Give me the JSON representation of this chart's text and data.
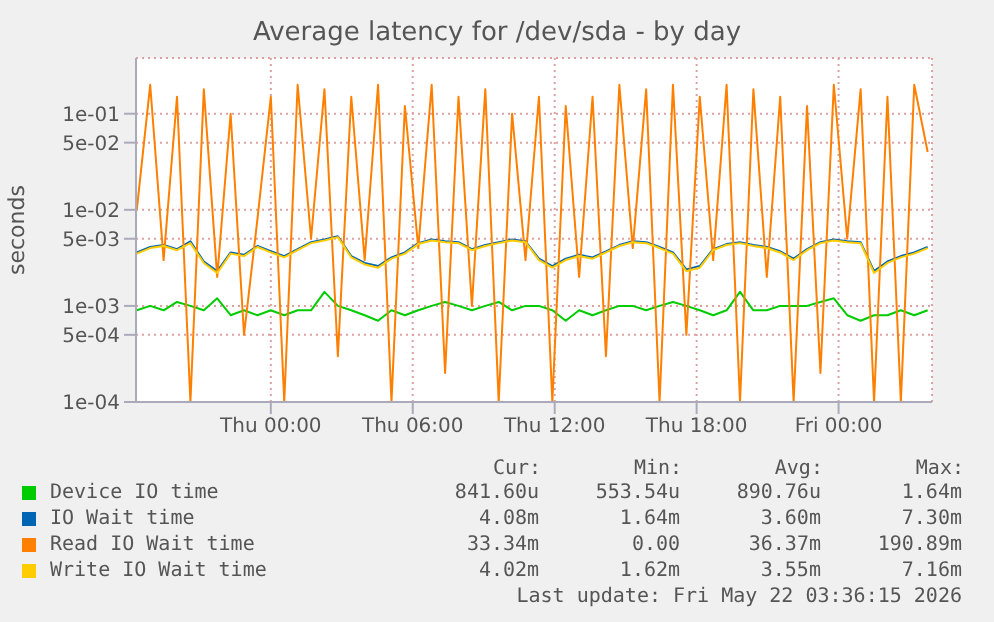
{
  "chart_data": {
    "type": "line",
    "title": "Average latency for /dev/sda - by day",
    "ylabel": "seconds",
    "log": "y",
    "grid": true,
    "legend": "bottom",
    "marker": "none",
    "line_style": "solid",
    "xlim": [
      "2026-05-20T18:18",
      "2026-05-22T03:57"
    ],
    "xticks": [
      {
        "value": "2026-05-21T00:00",
        "label": "Thu 00:00"
      },
      {
        "value": "2026-05-21T06:00",
        "label": "Thu 06:00"
      },
      {
        "value": "2026-05-21T12:00",
        "label": "Thu 12:00"
      },
      {
        "value": "2026-05-21T18:00",
        "label": "Thu 18:00"
      },
      {
        "value": "2026-05-22T00:00",
        "label": "Fri 00:00"
      }
    ],
    "ylim": [
      0.0001,
      0.38
    ],
    "yticks": [
      {
        "value": 0.0001,
        "label": "1e-04"
      },
      {
        "value": 0.0005,
        "label": "5e-04"
      },
      {
        "value": 0.001,
        "label": "1e-03"
      },
      {
        "value": 0.005,
        "label": "5e-03"
      },
      {
        "value": 0.01,
        "label": "1e-02"
      },
      {
        "value": 0.05,
        "label": "5e-02"
      },
      {
        "value": 0.1,
        "label": "1e-01"
      }
    ],
    "x": [
      "2026-05-20T18:20",
      "2026-05-20T18:54",
      "2026-05-20T19:28",
      "2026-05-20T20:02",
      "2026-05-20T20:36",
      "2026-05-20T21:10",
      "2026-05-20T21:44",
      "2026-05-20T22:18",
      "2026-05-20T22:52",
      "2026-05-20T23:26",
      "2026-05-21T00:00",
      "2026-05-21T00:34",
      "2026-05-21T01:08",
      "2026-05-21T01:42",
      "2026-05-21T02:16",
      "2026-05-21T02:50",
      "2026-05-21T03:24",
      "2026-05-21T03:58",
      "2026-05-21T04:32",
      "2026-05-21T05:06",
      "2026-05-21T05:40",
      "2026-05-21T06:14",
      "2026-05-21T06:48",
      "2026-05-21T07:22",
      "2026-05-21T07:56",
      "2026-05-21T08:30",
      "2026-05-21T09:04",
      "2026-05-21T09:38",
      "2026-05-21T10:12",
      "2026-05-21T10:46",
      "2026-05-21T11:20",
      "2026-05-21T11:54",
      "2026-05-21T12:28",
      "2026-05-21T13:02",
      "2026-05-21T13:36",
      "2026-05-21T14:10",
      "2026-05-21T14:44",
      "2026-05-21T15:18",
      "2026-05-21T15:52",
      "2026-05-21T16:26",
      "2026-05-21T17:00",
      "2026-05-21T17:34",
      "2026-05-21T18:08",
      "2026-05-21T18:42",
      "2026-05-21T19:16",
      "2026-05-21T19:50",
      "2026-05-21T20:24",
      "2026-05-21T20:58",
      "2026-05-21T21:32",
      "2026-05-21T22:06",
      "2026-05-21T22:40",
      "2026-05-21T23:14",
      "2026-05-21T23:48",
      "2026-05-22T00:22",
      "2026-05-22T00:56",
      "2026-05-22T01:30",
      "2026-05-22T02:04",
      "2026-05-22T02:38",
      "2026-05-22T03:12",
      "2026-05-22T03:46"
    ],
    "series": [
      {
        "name": "Device IO time",
        "color": "#00cc00",
        "values": [
          0.0009,
          0.001,
          0.0009,
          0.0011,
          0.001,
          0.0009,
          0.0012,
          0.0008,
          0.0009,
          0.0008,
          0.0009,
          0.0008,
          0.0009,
          0.0009,
          0.0014,
          0.001,
          0.0009,
          0.0008,
          0.0007,
          0.0009,
          0.0008,
          0.0009,
          0.001,
          0.0011,
          0.001,
          0.0009,
          0.001,
          0.0011,
          0.0009,
          0.001,
          0.001,
          0.0009,
          0.0007,
          0.0009,
          0.0008,
          0.0009,
          0.001,
          0.001,
          0.0009,
          0.001,
          0.0011,
          0.001,
          0.0009,
          0.0008,
          0.0009,
          0.0014,
          0.0009,
          0.0009,
          0.001,
          0.001,
          0.001,
          0.0011,
          0.0012,
          0.0008,
          0.0007,
          0.0008,
          0.0008,
          0.0009,
          0.0008,
          0.0009
        ]
      },
      {
        "name": "IO Wait time",
        "color": "#0066b3",
        "values": [
          0.0036,
          0.0041,
          0.0043,
          0.0039,
          0.0047,
          0.0029,
          0.0023,
          0.0036,
          0.0034,
          0.0042,
          0.0037,
          0.0033,
          0.0039,
          0.0046,
          0.0049,
          0.0053,
          0.0033,
          0.0028,
          0.0026,
          0.0032,
          0.0036,
          0.0045,
          0.0049,
          0.0047,
          0.0046,
          0.0039,
          0.0043,
          0.0046,
          0.0049,
          0.0047,
          0.0031,
          0.0026,
          0.0031,
          0.0034,
          0.0032,
          0.0037,
          0.0043,
          0.0047,
          0.0046,
          0.0041,
          0.0036,
          0.0024,
          0.0026,
          0.0039,
          0.0044,
          0.0046,
          0.0043,
          0.0041,
          0.0037,
          0.0031,
          0.0039,
          0.0046,
          0.0049,
          0.0047,
          0.0046,
          0.0023,
          0.0029,
          0.0033,
          0.0036,
          0.0041
        ]
      },
      {
        "name": "Read IO Wait time",
        "color": "#ff8000",
        "values": [
          0.01,
          0.2,
          0.003,
          0.15,
          0.0001,
          0.18,
          0.002,
          0.1,
          0.0005,
          0.008,
          0.15,
          0.0001,
          0.2,
          0.005,
          0.18,
          0.0003,
          0.15,
          0.003,
          0.2,
          0.0001,
          0.12,
          0.004,
          0.2,
          0.0002,
          0.15,
          0.001,
          0.18,
          0.0001,
          0.1,
          0.003,
          0.15,
          0.0001,
          0.12,
          0.002,
          0.15,
          0.0003,
          0.2,
          0.004,
          0.18,
          0.0001,
          0.2,
          0.0005,
          0.15,
          0.003,
          0.2,
          0.0001,
          0.18,
          0.002,
          0.15,
          0.0001,
          0.12,
          0.0002,
          0.2,
          0.005,
          0.18,
          0.0001,
          0.15,
          0.0001,
          0.2,
          0.04
        ]
      },
      {
        "name": "Write IO Wait time",
        "color": "#ffcc00",
        "values": [
          0.0035,
          0.004,
          0.0042,
          0.0038,
          0.0045,
          0.0028,
          0.0022,
          0.0035,
          0.0033,
          0.0041,
          0.0036,
          0.0032,
          0.0038,
          0.0045,
          0.0048,
          0.0052,
          0.0032,
          0.0027,
          0.0025,
          0.0031,
          0.0035,
          0.0044,
          0.0048,
          0.0046,
          0.0045,
          0.0038,
          0.0042,
          0.0045,
          0.0048,
          0.0046,
          0.003,
          0.0025,
          0.003,
          0.0033,
          0.0031,
          0.0036,
          0.0042,
          0.0046,
          0.0045,
          0.004,
          0.0035,
          0.0023,
          0.0025,
          0.0038,
          0.0043,
          0.0045,
          0.0042,
          0.004,
          0.0036,
          0.003,
          0.0038,
          0.0045,
          0.0048,
          0.0046,
          0.0045,
          0.0022,
          0.0028,
          0.0032,
          0.0035,
          0.004
        ]
      }
    ],
    "annotations": [
      "Cur:",
      "Min:",
      "Avg:",
      "Max:",
      "841.60u",
      "553.54u",
      "890.76u",
      "1.64m",
      "4.08m",
      "1.64m",
      "3.60m",
      "7.30m",
      "33.34m",
      "0.00",
      "36.37m",
      "190.89m",
      "4.02m",
      "1.62m",
      "3.55m",
      "7.16m",
      "Last update: Fri May 22 03:36:15 2026"
    ]
  }
}
